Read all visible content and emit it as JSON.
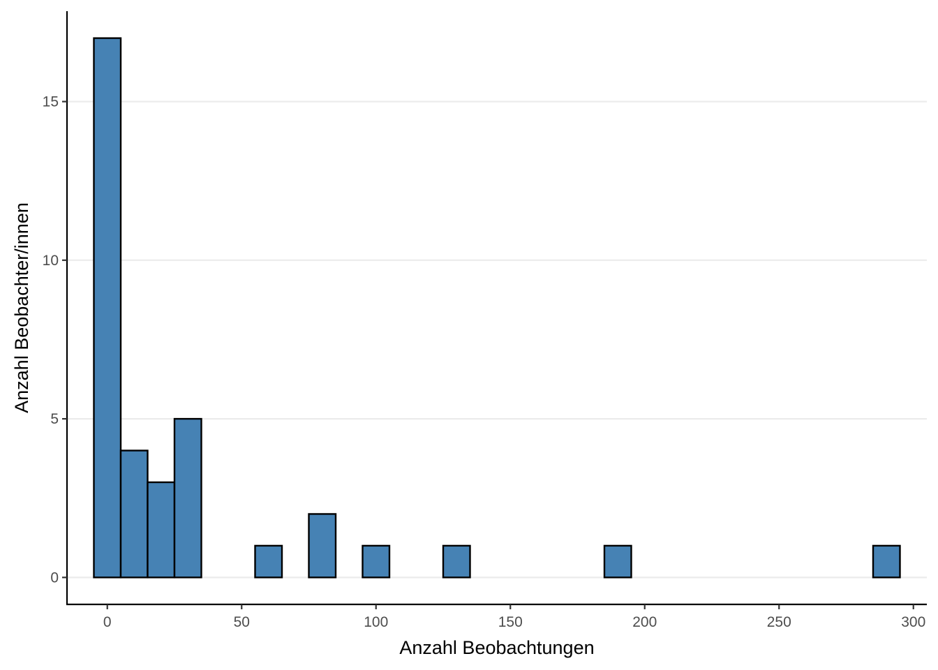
{
  "chart_data": {
    "type": "bar",
    "subtype": "histogram",
    "xlabel": "Anzahl Beobachtungen",
    "ylabel": "Anzahl Beobachter/innen",
    "xlim": [
      -15,
      305
    ],
    "ylim": [
      -0.85,
      17.85
    ],
    "xticks": [
      0,
      50,
      100,
      150,
      200,
      250,
      300
    ],
    "yticks": [
      0,
      5,
      10,
      15
    ],
    "bin_width": 10,
    "bins": [
      {
        "x": 0,
        "count": 17
      },
      {
        "x": 10,
        "count": 4
      },
      {
        "x": 20,
        "count": 3
      },
      {
        "x": 30,
        "count": 5
      },
      {
        "x": 40,
        "count": 0
      },
      {
        "x": 50,
        "count": 0
      },
      {
        "x": 60,
        "count": 1
      },
      {
        "x": 70,
        "count": 0
      },
      {
        "x": 80,
        "count": 2
      },
      {
        "x": 90,
        "count": 0
      },
      {
        "x": 100,
        "count": 1
      },
      {
        "x": 110,
        "count": 0
      },
      {
        "x": 120,
        "count": 0
      },
      {
        "x": 130,
        "count": 1
      },
      {
        "x": 140,
        "count": 0
      },
      {
        "x": 150,
        "count": 0
      },
      {
        "x": 160,
        "count": 0
      },
      {
        "x": 170,
        "count": 0
      },
      {
        "x": 180,
        "count": 0
      },
      {
        "x": 190,
        "count": 1
      },
      {
        "x": 200,
        "count": 0
      },
      {
        "x": 210,
        "count": 0
      },
      {
        "x": 220,
        "count": 0
      },
      {
        "x": 230,
        "count": 0
      },
      {
        "x": 240,
        "count": 0
      },
      {
        "x": 250,
        "count": 0
      },
      {
        "x": 260,
        "count": 0
      },
      {
        "x": 270,
        "count": 0
      },
      {
        "x": 280,
        "count": 0
      },
      {
        "x": 290,
        "count": 1
      }
    ],
    "grid": "horizontal major lines",
    "colors": {
      "fill": "#4682b4",
      "outline": "#000000",
      "grid": "#ebebeb"
    }
  }
}
